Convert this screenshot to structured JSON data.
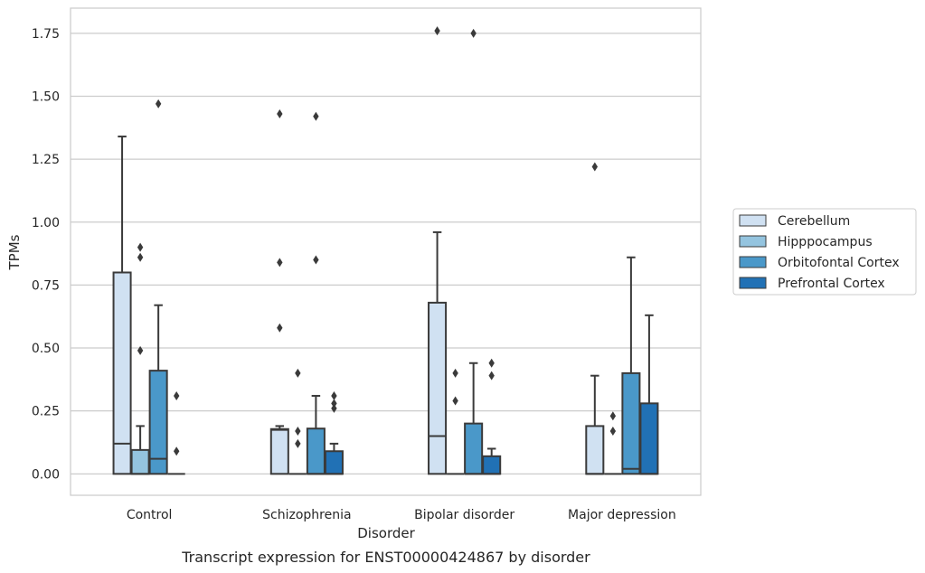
{
  "chart_data": {
    "type": "box",
    "caption": "Transcript expression for ENST00000424867 by disorder",
    "xlabel": "Disorder",
    "ylabel": "TPMs",
    "ylim": [
      -0.085,
      1.85
    ],
    "yticks": [
      0.0,
      0.25,
      0.5,
      0.75,
      1.0,
      1.25,
      1.5,
      1.75
    ],
    "ytick_labels": [
      "0.00",
      "0.25",
      "0.50",
      "0.75",
      "1.00",
      "1.25",
      "1.50",
      "1.75"
    ],
    "grid": "horizontal",
    "legend_position": "right",
    "categories": [
      "Control",
      "Schizophrenia",
      "Bipolar disorder",
      "Major depression"
    ],
    "series": [
      {
        "name": "Cerebellum",
        "color": "#d0e1f2",
        "boxes": [
          {
            "q1": 0.0,
            "median": 0.12,
            "q3": 0.8,
            "whisker_low": 0.0,
            "whisker_high": 1.34,
            "outliers": []
          },
          {
            "q1": 0.0,
            "median": 0.175,
            "q3": 0.178,
            "whisker_low": 0.0,
            "whisker_high": 0.19,
            "outliers": [
              0.58,
              0.84,
              1.43
            ]
          },
          {
            "q1": 0.0,
            "median": 0.15,
            "q3": 0.68,
            "whisker_low": 0.0,
            "whisker_high": 0.96,
            "outliers": [
              1.76
            ]
          },
          {
            "q1": 0.0,
            "median": 0.0,
            "q3": 0.19,
            "whisker_low": 0.0,
            "whisker_high": 0.39,
            "outliers": [
              1.22
            ]
          }
        ]
      },
      {
        "name": "Hipppocampus",
        "color": "#94c4df",
        "boxes": [
          {
            "q1": 0.0,
            "median": 0.0,
            "q3": 0.095,
            "whisker_low": 0.0,
            "whisker_high": 0.19,
            "outliers": [
              0.49,
              0.86,
              0.9
            ]
          },
          {
            "q1": 0.0,
            "median": 0.0,
            "q3": 0.0,
            "whisker_low": 0.0,
            "whisker_high": 0.0,
            "outliers": [
              0.12,
              0.17,
              0.4
            ]
          },
          {
            "q1": 0.0,
            "median": 0.0,
            "q3": 0.0,
            "whisker_low": 0.0,
            "whisker_high": 0.0,
            "outliers": [
              0.29,
              0.4
            ]
          },
          {
            "q1": 0.0,
            "median": 0.0,
            "q3": 0.0,
            "whisker_low": 0.0,
            "whisker_high": 0.0,
            "outliers": [
              0.17,
              0.23
            ]
          }
        ]
      },
      {
        "name": "Orbitofontal Cortex",
        "color": "#4a98c9",
        "boxes": [
          {
            "q1": 0.0,
            "median": 0.06,
            "q3": 0.41,
            "whisker_low": 0.0,
            "whisker_high": 0.67,
            "outliers": [
              1.47
            ]
          },
          {
            "q1": 0.0,
            "median": 0.0,
            "q3": 0.18,
            "whisker_low": 0.0,
            "whisker_high": 0.31,
            "outliers": [
              0.85,
              1.42
            ]
          },
          {
            "q1": 0.0,
            "median": 0.0,
            "q3": 0.2,
            "whisker_low": 0.0,
            "whisker_high": 0.44,
            "outliers": [
              1.75
            ]
          },
          {
            "q1": 0.0,
            "median": 0.02,
            "q3": 0.4,
            "whisker_low": 0.0,
            "whisker_high": 0.86,
            "outliers": []
          }
        ]
      },
      {
        "name": "Prefrontal Cortex",
        "color": "#2171b5",
        "boxes": [
          {
            "q1": 0.0,
            "median": 0.0,
            "q3": 0.0,
            "whisker_low": 0.0,
            "whisker_high": 0.0,
            "outliers": [
              0.09,
              0.31
            ]
          },
          {
            "q1": 0.0,
            "median": 0.0,
            "q3": 0.09,
            "whisker_low": 0.0,
            "whisker_high": 0.12,
            "outliers": [
              0.26,
              0.28,
              0.31
            ]
          },
          {
            "q1": 0.0,
            "median": 0.0,
            "q3": 0.07,
            "whisker_low": 0.0,
            "whisker_high": 0.1,
            "outliers": [
              0.39,
              0.44
            ]
          },
          {
            "q1": 0.0,
            "median": 0.0,
            "q3": 0.28,
            "whisker_low": 0.0,
            "whisker_high": 0.63,
            "outliers": []
          }
        ]
      }
    ]
  }
}
